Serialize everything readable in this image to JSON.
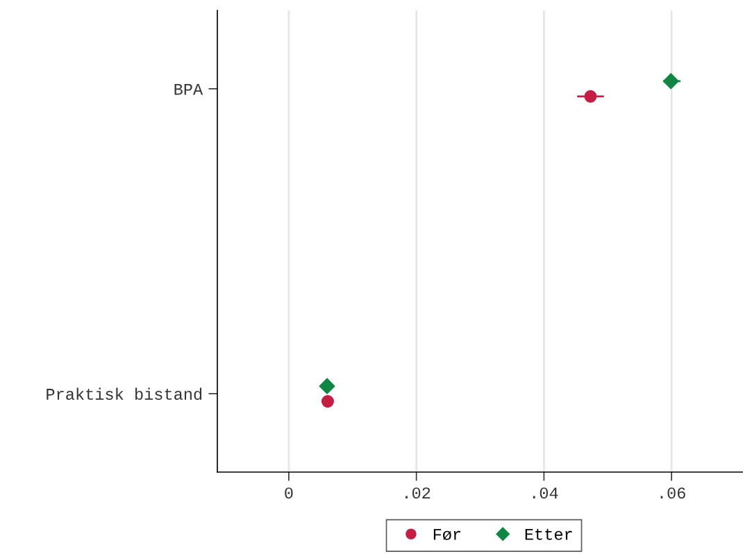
{
  "chart_data": {
    "type": "scatter",
    "orientation": "horizontal",
    "categories": [
      "BPA",
      "Praktisk bistand"
    ],
    "series": [
      {
        "name": "Før",
        "color": "#c41e45",
        "marker": "circle",
        "values": [
          0.0473,
          0.0061
        ],
        "errors": [
          [
            0.0452,
            0.0494
          ],
          null
        ]
      },
      {
        "name": "Etter",
        "color": "#0f8742",
        "marker": "diamond",
        "values": [
          0.0599,
          0.006
        ],
        "errors": [
          [
            0.0587,
            0.0614
          ],
          null
        ]
      }
    ],
    "xlim": [
      -0.0112,
      0.0712
    ],
    "xticks": [
      0,
      {
        "value": 0.02,
        "label": ".02"
      },
      {
        "value": 0.04,
        "label": ".04"
      },
      {
        "value": 0.06,
        "label": ".06"
      }
    ],
    "grid": "x",
    "legend": "bottom"
  }
}
